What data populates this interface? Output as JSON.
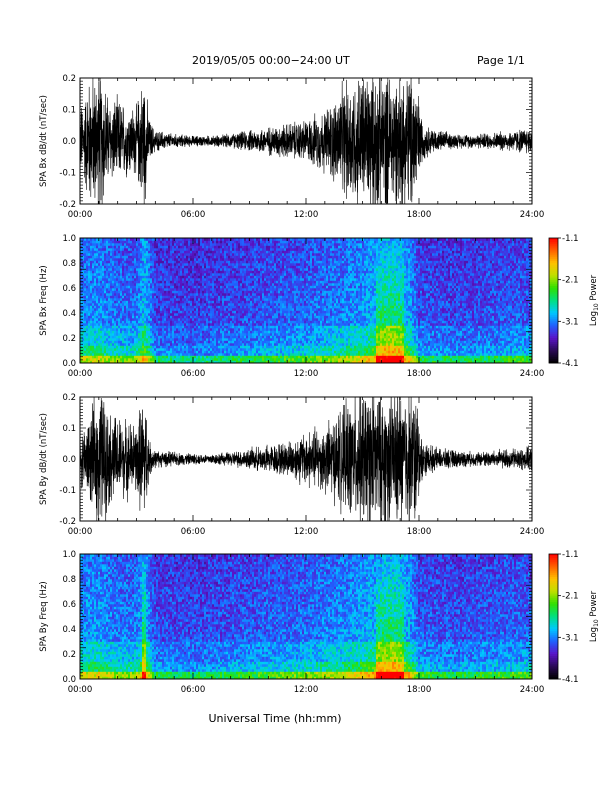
{
  "header": {
    "title": "2019/05/05  00:00−24:00 UT",
    "page": "Page 1/1"
  },
  "footer": {
    "xlabel": "Universal Time (hh:mm)"
  },
  "colors": {
    "trace": "#000000",
    "spectrogram_background": "#000000",
    "colormap": [
      "#000000",
      "#2a0a55",
      "#5a14c8",
      "#2060ff",
      "#00c8ff",
      "#00e080",
      "#30e000",
      "#c0e000",
      "#ffc000",
      "#ff6000",
      "#ff0000"
    ]
  },
  "chart_data": [
    {
      "type": "line",
      "title": "",
      "xlabel": "",
      "ylabel": "SPA Bx dB/dt (nT/sec)",
      "xlim": [
        "00:00",
        "24:00"
      ],
      "ylim": [
        -0.2,
        0.2
      ],
      "x_tick_labels": [
        "00:00",
        "06:00",
        "12:00",
        "18:00",
        "24:00"
      ],
      "y_tick_labels": [
        "-0.2",
        "-0.1",
        "0.0",
        "0.1",
        "0.2"
      ],
      "series": [
        {
          "x_hours": [
            0,
            0.5,
            1.0,
            1.2,
            1.5,
            2.0,
            2.5,
            3.0,
            3.4,
            3.7,
            4.0,
            5.0,
            6.0,
            7.0,
            8.0,
            9.0,
            10.0,
            11.0,
            12.0,
            13.0,
            13.5,
            14.0,
            15.0,
            16.0,
            17.0,
            17.8,
            18.2,
            19.0,
            20.0,
            21.0,
            22.0,
            23.0,
            24.0
          ],
          "amplitude_envelope": [
            0.09,
            0.18,
            0.2,
            0.2,
            0.12,
            0.12,
            0.1,
            0.1,
            0.2,
            0.06,
            0.03,
            0.02,
            0.015,
            0.015,
            0.02,
            0.03,
            0.04,
            0.05,
            0.06,
            0.09,
            0.12,
            0.16,
            0.2,
            0.2,
            0.2,
            0.2,
            0.05,
            0.03,
            0.02,
            0.02,
            0.025,
            0.03,
            0.04
          ]
        }
      ]
    },
    {
      "type": "heatmap",
      "title": "",
      "xlabel": "",
      "ylabel": "SPA Bx Freq (Hz)",
      "xlim": [
        "00:00",
        "24:00"
      ],
      "ylim": [
        0.0,
        1.0
      ],
      "x_tick_labels": [
        "00:00",
        "06:00",
        "12:00",
        "18:00",
        "24:00"
      ],
      "y_tick_labels": [
        "0.0",
        "0.2",
        "0.4",
        "0.6",
        "0.8",
        "1.0"
      ],
      "colorbar": {
        "label": "Log10 Power",
        "label_base": "Log",
        "label_sub": "10",
        "label_rest": " Power",
        "range": [
          -4.1,
          -1.1
        ],
        "tick_labels": [
          "-1.1",
          "-2.1",
          "-3.1",
          "-4.1"
        ]
      },
      "activity_hours": [
        0,
        1,
        2,
        3,
        3.4,
        4,
        6,
        9,
        12,
        14,
        15,
        16,
        16.5,
        17,
        17.5,
        18,
        20,
        22,
        24
      ],
      "activity_level": [
        0.55,
        0.6,
        0.45,
        0.45,
        0.85,
        0.25,
        0.2,
        0.3,
        0.4,
        0.55,
        0.65,
        0.85,
        0.9,
        0.85,
        0.7,
        0.3,
        0.25,
        0.3,
        0.35
      ]
    },
    {
      "type": "line",
      "title": "",
      "xlabel": "",
      "ylabel": "SPA By dB/dt (nT/sec)",
      "xlim": [
        "00:00",
        "24:00"
      ],
      "ylim": [
        -0.2,
        0.2
      ],
      "x_tick_labels": [
        "00:00",
        "06:00",
        "12:00",
        "18:00",
        "24:00"
      ],
      "y_tick_labels": [
        "-0.2",
        "-0.1",
        "0.0",
        "0.1",
        "0.2"
      ],
      "series": [
        {
          "x_hours": [
            0,
            0.5,
            1.0,
            1.2,
            1.5,
            2.0,
            2.5,
            3.0,
            3.4,
            3.7,
            4.0,
            5.0,
            6.0,
            7.0,
            8.0,
            9.0,
            10.0,
            11.0,
            12.0,
            13.0,
            13.5,
            14.0,
            15.0,
            16.0,
            17.0,
            17.8,
            18.2,
            19.0,
            20.0,
            21.0,
            22.0,
            23.0,
            24.0
          ],
          "amplitude_envelope": [
            0.07,
            0.12,
            0.2,
            0.2,
            0.14,
            0.12,
            0.11,
            0.1,
            0.2,
            0.05,
            0.025,
            0.02,
            0.015,
            0.015,
            0.02,
            0.03,
            0.04,
            0.05,
            0.08,
            0.1,
            0.12,
            0.15,
            0.2,
            0.2,
            0.2,
            0.2,
            0.05,
            0.03,
            0.025,
            0.02,
            0.025,
            0.03,
            0.035
          ]
        }
      ]
    },
    {
      "type": "heatmap",
      "title": "",
      "xlabel": "",
      "ylabel": "SPA By Freq (Hz)",
      "xlim": [
        "00:00",
        "24:00"
      ],
      "ylim": [
        0.0,
        1.0
      ],
      "x_tick_labels": [
        "00:00",
        "06:00",
        "12:00",
        "18:00",
        "24:00"
      ],
      "y_tick_labels": [
        "0.0",
        "0.2",
        "0.4",
        "0.6",
        "0.8",
        "1.0"
      ],
      "colorbar": {
        "label": "Log10 Power",
        "label_base": "Log",
        "label_sub": "10",
        "label_rest": " Power",
        "range": [
          -4.1,
          -1.1
        ],
        "tick_labels": [
          "-1.1",
          "-2.1",
          "-3.1",
          "-4.1"
        ]
      },
      "activity_hours": [
        0,
        1,
        2,
        3,
        3.4,
        4,
        6,
        9,
        12,
        14,
        15,
        16,
        16.5,
        17,
        17.5,
        18,
        20,
        22,
        24
      ],
      "activity_level": [
        0.6,
        0.65,
        0.5,
        0.5,
        0.85,
        0.3,
        0.25,
        0.35,
        0.45,
        0.6,
        0.7,
        0.85,
        0.9,
        0.85,
        0.75,
        0.35,
        0.3,
        0.35,
        0.4
      ]
    }
  ]
}
